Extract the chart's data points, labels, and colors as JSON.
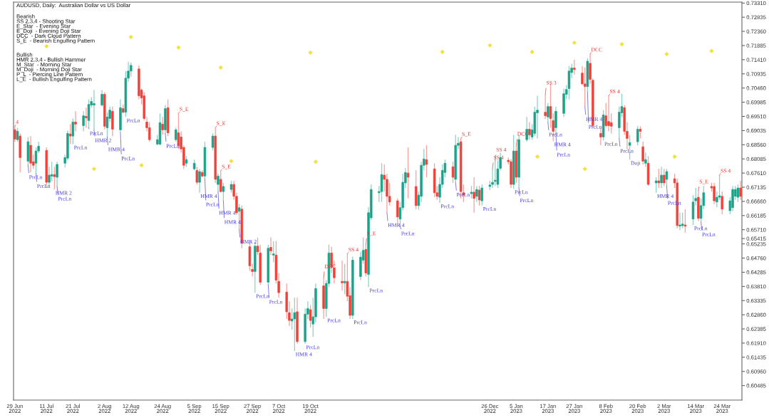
{
  "chart_data": {
    "type": "candlestick",
    "title": "AUDUSD, Daily:  Australian Dollar vs US Dollar",
    "x": [
      "2022-06-29",
      "2022-06-30",
      "2022-07-01",
      "2022-07-04",
      "2022-07-05",
      "2022-07-06",
      "2022-07-07",
      "2022-07-08",
      "2022-07-11",
      "2022-07-12",
      "2022-07-13",
      "2022-07-14",
      "2022-07-15",
      "2022-07-18",
      "2022-07-19",
      "2022-07-20",
      "2022-07-21",
      "2022-07-22",
      "2022-07-25",
      "2022-07-26",
      "2022-07-27",
      "2022-07-28",
      "2022-07-29",
      "2022-08-01",
      "2022-08-02",
      "2022-08-03",
      "2022-08-04",
      "2022-08-05",
      "2022-08-08",
      "2022-08-09",
      "2022-08-10",
      "2022-08-11",
      "2022-08-12",
      "2022-08-15",
      "2022-08-16",
      "2022-08-17",
      "2022-08-18",
      "2022-08-19",
      "2022-08-22",
      "2022-08-23",
      "2022-08-24",
      "2022-08-25",
      "2022-08-26",
      "2022-08-29",
      "2022-08-30",
      "2022-08-31",
      "2022-09-01",
      "2022-09-02",
      "2022-09-05",
      "2022-09-06",
      "2022-09-07",
      "2022-09-08",
      "2022-09-09",
      "2022-09-12",
      "2022-09-13",
      "2022-09-14",
      "2022-09-15",
      "2022-09-16",
      "2022-09-19",
      "2022-09-20",
      "2022-09-21",
      "2022-09-22",
      "2022-09-23",
      "2022-09-26",
      "2022-09-27",
      "2022-09-28",
      "2022-09-29",
      "2022-09-30",
      "2022-10-03",
      "2022-10-04",
      "2022-10-05",
      "2022-10-06",
      "2022-10-07",
      "2022-10-10",
      "2022-10-11",
      "2022-10-12",
      "2022-10-13",
      "2022-10-14",
      "2022-10-17",
      "2022-10-18",
      "2022-10-19",
      "2022-10-20",
      "2022-10-21",
      "2022-10-24",
      "2022-10-25",
      "2022-10-26",
      "2022-10-27",
      "2022-10-28",
      "2022-10-31",
      "2022-11-01",
      "2022-11-02",
      "2022-11-03",
      "2022-11-04",
      "2022-11-07",
      "2022-11-08",
      "2022-11-09",
      "2022-11-10",
      "2022-11-11",
      "2022-11-14",
      "2022-11-15",
      "2022-11-16",
      "2022-11-17",
      "2022-11-18",
      "2022-11-21",
      "2022-11-22",
      "2022-11-23",
      "2022-11-24",
      "2022-11-25",
      "2022-11-28",
      "2022-11-29",
      "2022-11-30",
      "2022-12-01",
      "2022-12-02",
      "2022-12-05",
      "2022-12-06",
      "2022-12-07",
      "2022-12-08",
      "2022-12-09",
      "2022-12-12",
      "2022-12-13",
      "2022-12-14",
      "2022-12-15",
      "2022-12-16",
      "2022-12-19",
      "2022-12-20",
      "2022-12-21",
      "2022-12-22",
      "2022-12-23",
      "2022-12-26",
      "2022-12-27",
      "2022-12-28",
      "2022-12-29",
      "2022-12-30",
      "2023-01-02",
      "2023-01-03",
      "2023-01-04",
      "2023-01-05",
      "2023-01-06",
      "2023-01-09",
      "2023-01-10",
      "2023-01-11",
      "2023-01-12",
      "2023-01-13",
      "2023-01-16",
      "2023-01-17",
      "2023-01-18",
      "2023-01-19",
      "2023-01-20",
      "2023-01-23",
      "2023-01-24",
      "2023-01-25",
      "2023-01-26",
      "2023-01-27",
      "2023-01-30",
      "2023-01-31",
      "2023-02-01",
      "2023-02-02",
      "2023-02-03",
      "2023-02-06",
      "2023-02-07",
      "2023-02-08",
      "2023-02-09",
      "2023-02-10",
      "2023-02-13",
      "2023-02-14",
      "2023-02-15",
      "2023-02-16",
      "2023-02-17",
      "2023-02-20",
      "2023-02-21",
      "2023-02-22",
      "2023-02-23",
      "2023-02-24",
      "2023-02-27",
      "2023-02-28",
      "2023-03-01",
      "2023-03-02",
      "2023-03-03",
      "2023-03-06",
      "2023-03-07",
      "2023-03-08",
      "2023-03-09",
      "2023-03-10",
      "2023-03-13",
      "2023-03-14",
      "2023-03-15",
      "2023-03-16",
      "2023-03-17",
      "2023-03-20",
      "2023-03-21",
      "2023-03-22",
      "2023-03-23",
      "2023-03-24",
      "2023-03-27",
      "2023-03-28",
      "2023-03-29",
      "2023-03-30",
      "2023-03-31"
    ],
    "ohlc": [
      [
        0.6906,
        0.6918,
        0.6866,
        0.6875
      ],
      [
        0.6873,
        0.6913,
        0.6866,
        0.6901
      ],
      [
        0.6885,
        0.6894,
        0.6763,
        0.6813
      ],
      [
        0.6801,
        0.6882,
        0.6787,
        0.6866
      ],
      [
        0.6854,
        0.6885,
        0.6763,
        0.6794
      ],
      [
        0.6799,
        0.6823,
        0.6775,
        0.6787
      ],
      [
        0.6794,
        0.6847,
        0.6759,
        0.6835
      ],
      [
        0.6835,
        0.6866,
        0.6828,
        0.6851
      ],
      [
        0.6837,
        0.6847,
        0.6711,
        0.673
      ],
      [
        0.673,
        0.6782,
        0.6718,
        0.6754
      ],
      [
        0.6751,
        0.6799,
        0.6733,
        0.6756
      ],
      [
        0.6756,
        0.6782,
        0.6706,
        0.6749
      ],
      [
        0.6747,
        0.6799,
        0.6716,
        0.679
      ],
      [
        0.6794,
        0.6823,
        0.678,
        0.6813
      ],
      [
        0.6811,
        0.6904,
        0.6804,
        0.6894
      ],
      [
        0.6892,
        0.6925,
        0.6858,
        0.6885
      ],
      [
        0.6885,
        0.6944,
        0.6858,
        0.6932
      ],
      [
        0.6932,
        0.6968,
        0.6901,
        0.6925
      ],
      [
        0.692,
        0.6968,
        0.6901,
        0.6953
      ],
      [
        0.6951,
        0.698,
        0.6913,
        0.6946
      ],
      [
        0.6937,
        0.7008,
        0.6913,
        0.6991
      ],
      [
        0.6989,
        0.7015,
        0.698,
        0.7001
      ],
      [
        0.6989,
        0.7039,
        0.6906,
        0.6994
      ],
      [
        0.6989,
        0.7039,
        0.6984,
        0.7025
      ],
      [
        0.7025,
        0.7032,
        0.6908,
        0.6918
      ],
      [
        0.6913,
        0.6965,
        0.6882,
        0.6949
      ],
      [
        0.6944,
        0.6984,
        0.6932,
        0.6972
      ],
      [
        0.6968,
        0.6984,
        0.6885,
        0.6908
      ],
      [
        0.6906,
        0.7008,
        0.6896,
        0.698
      ],
      [
        0.6977,
        0.6991,
        0.6961,
        0.6965
      ],
      [
        0.6965,
        0.7103,
        0.6949,
        0.7079
      ],
      [
        0.7079,
        0.7134,
        0.7067,
        0.7103
      ],
      [
        0.7103,
        0.7132,
        0.7084,
        0.7122
      ],
      [
        0.711,
        0.7122,
        0.7008,
        0.702
      ],
      [
        0.7039,
        0.7044,
        0.6991,
        0.7013
      ],
      [
        0.702,
        0.7032,
        0.6937,
        0.6944
      ],
      [
        0.6932,
        0.6949,
        0.6901,
        0.6913
      ],
      [
        0.6913,
        0.6932,
        0.6866,
        0.6873
      ],
      [
        0.6858,
        0.6889,
        0.6854,
        0.6873
      ],
      [
        0.6858,
        0.6961,
        0.6854,
        0.693
      ],
      [
        0.6925,
        0.6949,
        0.6889,
        0.6906
      ],
      [
        0.6906,
        0.6989,
        0.6894,
        0.6977
      ],
      [
        0.698,
        0.7008,
        0.6885,
        0.6896
      ],
      [
        0.6873,
        0.6913,
        0.6866,
        0.6906
      ],
      [
        0.6896,
        0.6961,
        0.6842,
        0.6854
      ],
      [
        0.6882,
        0.6901,
        0.683,
        0.6842
      ],
      [
        0.6847,
        0.6854,
        0.6775,
        0.6787
      ],
      [
        0.6794,
        0.6818,
        0.6782,
        0.6806
      ],
      [
        0.6775,
        0.6806,
        0.677,
        0.6794
      ],
      [
        0.677,
        0.6782,
        0.6723,
        0.673
      ],
      [
        0.673,
        0.6775,
        0.6695,
        0.6766
      ],
      [
        0.6763,
        0.677,
        0.6747,
        0.6751
      ],
      [
        0.6751,
        0.6866,
        0.6742,
        0.6847
      ],
      [
        0.6847,
        0.6894,
        0.6837,
        0.6885
      ],
      [
        0.6885,
        0.6913,
        0.6728,
        0.674
      ],
      [
        0.6723,
        0.6759,
        0.6699,
        0.6751
      ],
      [
        0.674,
        0.6768,
        0.6695,
        0.6699
      ],
      [
        0.6699,
        0.6728,
        0.6668,
        0.6716
      ],
      [
        0.6706,
        0.6735,
        0.6695,
        0.6723
      ],
      [
        0.6723,
        0.6735,
        0.6671,
        0.6683
      ],
      [
        0.6683,
        0.6695,
        0.6621,
        0.6628
      ],
      [
        0.6633,
        0.6657,
        0.6573,
        0.6645
      ],
      [
        0.664,
        0.6652,
        0.6509,
        0.6526
      ],
      [
        0.6514,
        0.6528,
        0.6433,
        0.645
      ],
      [
        0.6438,
        0.6457,
        0.6414,
        0.6431
      ],
      [
        0.6431,
        0.6528,
        0.636,
        0.6516
      ],
      [
        0.6516,
        0.6545,
        0.6486,
        0.6497
      ],
      [
        0.6493,
        0.6521,
        0.6386,
        0.6395
      ],
      [
        0.6395,
        0.6521,
        0.6386,
        0.6509
      ],
      [
        0.6512,
        0.6545,
        0.6486,
        0.65
      ],
      [
        0.6486,
        0.6533,
        0.6462,
        0.649
      ],
      [
        0.6486,
        0.6533,
        0.6391,
        0.6402
      ],
      [
        0.6398,
        0.6426,
        0.6343,
        0.636
      ],
      [
        0.6362,
        0.6391,
        0.6272,
        0.6296
      ],
      [
        0.6293,
        0.6331,
        0.6248,
        0.6267
      ],
      [
        0.6265,
        0.6307,
        0.6236,
        0.6272
      ],
      [
        0.6272,
        0.6343,
        0.6165,
        0.6293
      ],
      [
        0.6296,
        0.6343,
        0.6189,
        0.6196
      ],
      [
        0.6196,
        0.6307,
        0.6189,
        0.6288
      ],
      [
        0.6288,
        0.6331,
        0.6272,
        0.6307
      ],
      [
        0.6303,
        0.6319,
        0.6243,
        0.6267
      ],
      [
        0.6255,
        0.6343,
        0.6212,
        0.6279
      ],
      [
        0.6279,
        0.6391,
        0.626,
        0.6374
      ],
      [
        0.6383,
        0.641,
        0.6272,
        0.6307
      ],
      [
        0.6307,
        0.6402,
        0.6279,
        0.6391
      ],
      [
        0.6391,
        0.6521,
        0.6379,
        0.6493
      ],
      [
        0.6493,
        0.6514,
        0.6426,
        0.6445
      ],
      [
        0.6443,
        0.6467,
        0.6391,
        0.641
      ],
      [
        0.6398,
        0.6467,
        0.6367,
        0.6393
      ],
      [
        0.6393,
        0.6457,
        0.6355,
        0.6398
      ],
      [
        0.6398,
        0.649,
        0.6331,
        0.6348
      ],
      [
        0.635,
        0.6379,
        0.6272,
        0.6284
      ],
      [
        0.6284,
        0.6481,
        0.6272,
        0.6469
      ],
      [
        0.6414,
        0.6497,
        0.6402,
        0.6479
      ],
      [
        0.6469,
        0.6545,
        0.6457,
        0.6502
      ],
      [
        0.6505,
        0.6521,
        0.6414,
        0.6426
      ],
      [
        0.6421,
        0.6647,
        0.6379,
        0.6628
      ],
      [
        0.6611,
        0.6723,
        0.6604,
        0.6706
      ],
      [
        0.6695,
        0.6718,
        0.6664,
        0.6699
      ],
      [
        0.6699,
        0.6794,
        0.6664,
        0.6756
      ],
      [
        0.6754,
        0.679,
        0.6699,
        0.674
      ],
      [
        0.674,
        0.6759,
        0.6628,
        0.6683
      ],
      [
        0.6683,
        0.6728,
        0.6652,
        0.6664
      ],
      [
        0.6668,
        0.6676,
        0.6595,
        0.6614
      ],
      [
        0.6607,
        0.6664,
        0.6585,
        0.6645
      ],
      [
        0.6645,
        0.6759,
        0.6635,
        0.673
      ],
      [
        0.6728,
        0.6778,
        0.6711,
        0.6763
      ],
      [
        0.6761,
        0.6847,
        0.6676,
        0.6747
      ],
      [
        0.6716,
        0.677,
        0.664,
        0.6652
      ],
      [
        0.6652,
        0.6699,
        0.6638,
        0.6687
      ],
      [
        0.6683,
        0.6799,
        0.6664,
        0.6787
      ],
      [
        0.6787,
        0.6842,
        0.677,
        0.6808
      ],
      [
        0.6806,
        0.6854,
        0.6747,
        0.679
      ],
      [
        0.6775,
        0.6794,
        0.668,
        0.6695
      ],
      [
        0.6695,
        0.6718,
        0.6671,
        0.6683
      ],
      [
        0.668,
        0.6747,
        0.6661,
        0.6723
      ],
      [
        0.6723,
        0.679,
        0.6711,
        0.677
      ],
      [
        0.6763,
        0.6806,
        0.6747,
        0.6794
      ],
      [
        0.6782,
        0.6799,
        0.6728,
        0.6747
      ],
      [
        0.674,
        0.6889,
        0.673,
        0.6854
      ],
      [
        0.6854,
        0.6882,
        0.6842,
        0.6861
      ],
      [
        0.6866,
        0.6877,
        0.6676,
        0.6699
      ],
      [
        0.6695,
        0.6723,
        0.6664,
        0.6687
      ],
      [
        0.6692,
        0.6718,
        0.6676,
        0.6697
      ],
      [
        0.6697,
        0.6747,
        0.6628,
        0.6676
      ],
      [
        0.6683,
        0.6718,
        0.6664,
        0.6706
      ],
      [
        0.6704,
        0.6718,
        0.6652,
        0.6671
      ],
      [
        0.6668,
        0.6723,
        0.6652,
        0.6711
      ],
      [
        0.6716,
        0.6735,
        0.6704,
        0.6721
      ],
      [
        0.6723,
        0.6775,
        0.6711,
        0.673
      ],
      [
        0.6733,
        0.6801,
        0.6718,
        0.6737
      ],
      [
        0.6723,
        0.6804,
        0.6711,
        0.6775
      ],
      [
        0.6777,
        0.683,
        0.677,
        0.6813
      ],
      [
        0.6804,
        0.6813,
        0.679,
        0.6799
      ],
      [
        0.6799,
        0.6808,
        0.6711,
        0.6723
      ],
      [
        0.6723,
        0.6889,
        0.6709,
        0.6835
      ],
      [
        0.6835,
        0.6854,
        0.6728,
        0.6747
      ],
      [
        0.6747,
        0.6889,
        0.6711,
        0.6873
      ],
      [
        0.6873,
        0.6949,
        0.6866,
        0.6908
      ],
      [
        0.6908,
        0.6932,
        0.6873,
        0.6889
      ],
      [
        0.6882,
        0.6925,
        0.6873,
        0.6906
      ],
      [
        0.6894,
        0.6984,
        0.6885,
        0.6965
      ],
      [
        0.6963,
        0.702,
        0.6877,
        0.6972
      ],
      [
        0.6965,
        0.7025,
        0.6942,
        0.6953
      ],
      [
        0.6949,
        0.6996,
        0.6932,
        0.6984
      ],
      [
        0.6984,
        0.706,
        0.6913,
        0.6944
      ],
      [
        0.6937,
        0.6961,
        0.6868,
        0.6901
      ],
      [
        0.6913,
        0.6984,
        0.6894,
        0.6968
      ],
      [
        0.6961,
        0.7044,
        0.6949,
        0.7027
      ],
      [
        0.7025,
        0.7056,
        0.7008,
        0.7041
      ],
      [
        0.7044,
        0.712,
        0.7008,
        0.7103
      ],
      [
        0.7098,
        0.7127,
        0.7079,
        0.7113
      ],
      [
        0.7113,
        0.7141,
        0.7091,
        0.7108
      ],
      [
        0.7096,
        0.712,
        0.7056,
        0.706
      ],
      [
        0.706,
        0.7115,
        0.6984,
        0.7051
      ],
      [
        0.7051,
        0.7146,
        0.7032,
        0.7136
      ],
      [
        0.7129,
        0.716,
        0.706,
        0.7075
      ],
      [
        0.7072,
        0.7079,
        0.6913,
        0.692
      ],
      [
        0.6894,
        0.6913,
        0.6854,
        0.6882
      ],
      [
        0.6882,
        0.6972,
        0.687,
        0.6956
      ],
      [
        0.6953,
        0.6996,
        0.6913,
        0.692
      ],
      [
        0.6934,
        0.702,
        0.6901,
        0.692
      ],
      [
        0.693,
        0.6961,
        0.6894,
        0.6918
      ],
      [
        0.6913,
        0.6984,
        0.6877,
        0.6965
      ],
      [
        0.6963,
        0.7027,
        0.6949,
        0.6984
      ],
      [
        0.698,
        0.6989,
        0.6889,
        0.6901
      ],
      [
        0.6901,
        0.6932,
        0.6842,
        0.6877
      ],
      [
        0.6854,
        0.6889,
        0.6806,
        0.6863
      ],
      [
        0.6866,
        0.6918,
        0.6854,
        0.6908
      ],
      [
        0.6908,
        0.6918,
        0.6877,
        0.6901
      ],
      [
        0.6849,
        0.6866,
        0.679,
        0.6801
      ],
      [
        0.6794,
        0.683,
        0.6782,
        0.6806
      ],
      [
        0.6794,
        0.6818,
        0.6718,
        0.6723
      ],
      [
        0.6728,
        0.6747,
        0.6695,
        0.6735
      ],
      [
        0.6735,
        0.6775,
        0.6711,
        0.6728
      ],
      [
        0.6728,
        0.6782,
        0.6711,
        0.6754
      ],
      [
        0.6754,
        0.6775,
        0.6718,
        0.6728
      ],
      [
        0.674,
        0.6775,
        0.6718,
        0.6766
      ],
      [
        0.6742,
        0.6759,
        0.6711,
        0.6728
      ],
      [
        0.6728,
        0.6742,
        0.6576,
        0.6585
      ],
      [
        0.6583,
        0.6628,
        0.6569,
        0.6587
      ],
      [
        0.6585,
        0.6628,
        0.6576,
        0.659
      ],
      [
        0.6587,
        0.664,
        0.6561,
        0.6583
      ],
      [
        0.6607,
        0.6687,
        0.6587,
        0.6664
      ],
      [
        0.6668,
        0.6711,
        0.6652,
        0.6676
      ],
      [
        0.668,
        0.6704,
        0.66,
        0.6609
      ],
      [
        0.6609,
        0.6676,
        0.6597,
        0.6652
      ],
      [
        0.6652,
        0.6718,
        0.664,
        0.6695
      ],
      [
        0.6716,
        0.6728,
        0.6699,
        0.6711
      ],
      [
        0.6716,
        0.6728,
        0.6657,
        0.6668
      ],
      [
        0.6664,
        0.6699,
        0.6647,
        0.668
      ],
      [
        0.668,
        0.6754,
        0.6671,
        0.6685
      ],
      [
        0.6683,
        0.6699,
        0.6623,
        0.664
      ],
      [
        0.6635,
        0.668,
        0.6623,
        0.6668
      ],
      [
        0.6645,
        0.6718,
        0.6633,
        0.6706
      ],
      [
        0.6683,
        0.6718,
        0.6671,
        0.6706
      ],
      [
        0.668,
        0.6723,
        0.6664,
        0.6711
      ],
      [
        0.6711,
        0.6735,
        0.6671,
        0.6683
      ]
    ],
    "colors": [
      "#f0413a",
      "#1aa38a",
      "#f0413a",
      "#1aa38a",
      "#f0413a",
      "#f0413a",
      "#1aa38a",
      "#1aa38a",
      "#f0413a",
      "#1aa38a",
      "#1aa38a",
      "#f0413a",
      "#1aa38a",
      "#1aa38a",
      "#1aa38a",
      "#f0413a",
      "#1aa38a",
      "#f0413a",
      "#1aa38a",
      "#f0413a",
      "#1aa38a",
      "#1aa38a",
      "#1aa38a",
      "#1aa38a",
      "#f0413a",
      "#1aa38a",
      "#1aa38a",
      "#f0413a",
      "#1aa38a",
      "#f0413a",
      "#1aa38a",
      "#1aa38a",
      "#1aa38a",
      "#f0413a",
      "#f0413a",
      "#f0413a",
      "#f0413a",
      "#f0413a",
      "#1aa38a",
      "#1aa38a",
      "#f0413a",
      "#1aa38a",
      "#f0413a",
      "#1aa38a",
      "#f0413a",
      "#f0413a",
      "#f0413a",
      "#1aa38a",
      "#1aa38a",
      "#f0413a",
      "#1aa38a",
      "#f0413a",
      "#1aa38a",
      "#1aa38a",
      "#f0413a",
      "#1aa38a",
      "#f0413a",
      "#1aa38a",
      "#1aa38a",
      "#f0413a",
      "#f0413a",
      "#1aa38a",
      "#f0413a",
      "#f0413a",
      "#f0413a",
      "#1aa38a",
      "#f0413a",
      "#f0413a",
      "#1aa38a",
      "#f0413a",
      "#1aa38a",
      "#f0413a",
      "#f0413a",
      "#f0413a",
      "#f0413a",
      "#1aa38a",
      "#1aa38a",
      "#f0413a",
      "#1aa38a",
      "#1aa38a",
      "#f0413a",
      "#1aa38a",
      "#1aa38a",
      "#f0413a",
      "#1aa38a",
      "#1aa38a",
      "#f0413a",
      "#f0413a",
      "#f0413a",
      "#1aa38a",
      "#f0413a",
      "#f0413a",
      "#1aa38a",
      "#1aa38a",
      "#1aa38a",
      "#f0413a",
      "#1aa38a",
      "#1aa38a",
      "#1aa38a",
      "#1aa38a",
      "#f0413a",
      "#f0413a",
      "#f0413a",
      "#f0413a",
      "#1aa38a",
      "#1aa38a",
      "#1aa38a",
      "#f0413a",
      "#f0413a",
      "#1aa38a",
      "#1aa38a",
      "#1aa38a",
      "#f0413a",
      "#f0413a",
      "#f0413a",
      "#1aa38a",
      "#1aa38a",
      "#1aa38a",
      "#f0413a",
      "#1aa38a",
      "#1aa38a",
      "#f0413a",
      "#f0413a",
      "#1aa38a",
      "#f0413a",
      "#1aa38a",
      "#f0413a",
      "#1aa38a",
      "#1aa38a",
      "#1aa38a",
      "#1aa38a",
      "#1aa38a",
      "#1aa38a",
      "#f0413a",
      "#f0413a",
      "#1aa38a",
      "#f0413a",
      "#1aa38a",
      "#1aa38a",
      "#f0413a",
      "#1aa38a",
      "#1aa38a",
      "#1aa38a",
      "#f0413a",
      "#1aa38a",
      "#f0413a",
      "#f0413a",
      "#1aa38a",
      "#1aa38a",
      "#1aa38a",
      "#1aa38a",
      "#1aa38a",
      "#f0413a",
      "#f0413a",
      "#f0413a",
      "#1aa38a",
      "#f0413a",
      "#f0413a",
      "#f0413a",
      "#1aa38a",
      "#f0413a",
      "#f0413a",
      "#f0413a",
      "#1aa38a",
      "#1aa38a",
      "#f0413a",
      "#f0413a",
      "#1aa38a",
      "#1aa38a",
      "#f0413a",
      "#f0413a",
      "#1aa38a",
      "#f0413a",
      "#1aa38a",
      "#f0413a",
      "#1aa38a",
      "#f0413a",
      "#1aa38a",
      "#f0413a",
      "#f0413a",
      "#1aa38a",
      "#1aa38a",
      "#f0413a",
      "#1aa38a",
      "#1aa38a",
      "#f0413a",
      "#1aa38a",
      "#1aa38a",
      "#f0413a",
      "#f0413a",
      "#1aa38a",
      "#1aa38a",
      "#f0413a",
      "#1aa38a",
      "#1aa38a",
      "#1aa38a",
      "#1aa38a",
      "#f0413a"
    ],
    "series": [
      {
        "type": "scatter",
        "color": "#f2e23a",
        "x": [
          "2022-07-11",
          "2022-07-29",
          "2022-08-12",
          "2022-08-16",
          "2022-08-30",
          "2022-09-15",
          "2022-09-19",
          "2022-10-19",
          "2022-10-21",
          "2022-12-08",
          "2022-12-26",
          "2023-01-11",
          "2023-01-13",
          "2023-01-27",
          "2023-01-31",
          "2023-02-14",
          "2023-03-03",
          "2023-03-06",
          "2023-03-20"
        ],
        "values": [
          0.7186,
          0.6775,
          0.7217,
          0.6787,
          0.7182,
          0.7115,
          0.6801,
          0.7165,
          0.6799,
          0.7167,
          0.7189,
          0.7167,
          0.6816,
          0.7198,
          0.6775,
          0.7193,
          0.716,
          0.6816,
          0.717
        ]
      }
    ],
    "marker": "diamond",
    "xlim": [
      "2022-06-28T12:00",
      "2023-03-31T12:00"
    ],
    "xticks": [
      {
        "value": "2022-06-29",
        "label": "29 Jun 2022"
      },
      {
        "value": "2022-07-11",
        "label": "11 Jul 2022"
      },
      {
        "value": "2022-07-21",
        "label": "21 Jul 2022"
      },
      {
        "value": "2022-08-02",
        "label": "2 Aug 2022"
      },
      {
        "value": "2022-08-12",
        "label": "12 Aug 2022"
      },
      {
        "value": "2022-08-24",
        "label": "24 Aug 2022"
      },
      {
        "value": "2022-09-05",
        "label": "5 Sep 2022"
      },
      {
        "value": "2022-09-15",
        "label": "15 Sep 2022"
      },
      {
        "value": "2022-09-27",
        "label": "27 Sep 2022"
      },
      {
        "value": "2022-10-07",
        "label": "7 Oct 2022"
      },
      {
        "value": "2022-10-19",
        "label": "19 Oct 2022"
      },
      {
        "value": "2022-12-26",
        "label": "26 Dec 2022"
      },
      {
        "value": "2023-01-05",
        "label": "5 Jan 2023"
      },
      {
        "value": "2023-01-17",
        "label": "17 Jan 2023"
      },
      {
        "value": "2023-01-27",
        "label": "27 Jan 2023"
      },
      {
        "value": "2023-02-08",
        "label": "8 Feb 2023"
      },
      {
        "value": "2023-02-20",
        "label": "20 Feb 2023"
      },
      {
        "value": "2023-03-02",
        "label": "2 Mar 2023"
      },
      {
        "value": "2023-03-14",
        "label": "14 Mar 2023"
      },
      {
        "value": "2023-03-24",
        "label": "24 Mar 2023"
      }
    ],
    "ylim": [
      0.6,
      0.7334
    ],
    "yticks": [
      0.60485,
      {
        "value": 0.6096,
        "label": "0.60960"
      },
      0.61435,
      {
        "value": 0.6191,
        "label": "0.61910"
      },
      0.62385,
      {
        "value": 0.6286,
        "label": "0.62860"
      },
      0.63335,
      {
        "value": 0.6381,
        "label": "0.63810"
      },
      0.64285,
      {
        "value": 0.6476,
        "label": "0.64760"
      },
      0.65235,
      0.65415,
      {
        "value": 0.6571,
        "label": "0.65710"
      },
      0.66185,
      {
        "value": 0.6666,
        "label": "0.66660"
      },
      0.67135,
      {
        "value": 0.6761,
        "label": "0.67610"
      },
      0.68085,
      {
        "value": 0.6856,
        "label": "0.68560"
      },
      0.69035,
      {
        "value": 0.6951,
        "label": "0.69510"
      },
      0.69985,
      {
        "value": 0.7046,
        "label": "0.70460"
      },
      0.70935,
      {
        "value": 0.7141,
        "label": "0.71410"
      },
      0.71885,
      {
        "value": 0.7236,
        "label": "0.72360"
      },
      0.72835,
      {
        "value": 0.7331,
        "label": "0.73310"
      }
    ],
    "annotations": [
      "Bearish\nSS 2,3,4 - Shooting Star\nE_Star  - Evening Star\nE_Doji  - Evening Doji Star\nDCC  - Dark Cloud Pattern\nS_E  - Bearish Engulfing Pattern",
      "Bullish\nHMR 2,3,4 - Bullish Hammer\nM_Star  - Morning Star\nM_Doji  - Morning Doji Star\nP_L  - Piercing Line Pattern\nL_E  - Bullish Engulfing Pattern",
      {
        "text": "4",
        "x": "2022-06-29",
        "y": 0.6918
      },
      {
        "text": "PrcLn",
        "x": "2022-07-04",
        "y": 0.6787
      },
      {
        "text": "PrcLn",
        "x": "2022-07-07",
        "y": 0.6759
      },
      {
        "text": "HMR 2",
        "x": "2022-07-14",
        "y": 0.6706
      },
      {
        "text": "PrcLn",
        "x": "2022-07-15",
        "y": 0.6716
      },
      {
        "text": "PrcLn",
        "x": "2022-07-21",
        "y": 0.6858
      },
      {
        "text": "PrcLn",
        "x": "2022-07-27",
        "y": 0.6913
      },
      {
        "text": "HMR 2",
        "x": "2022-07-29",
        "y": 0.6906
      },
      {
        "text": "HMR 4",
        "x": "2022-08-03",
        "y": 0.6882
      },
      {
        "text": "PrcLn",
        "x": "2022-08-08",
        "y": 0.6896
      },
      {
        "text": "PrcLn",
        "x": "2022-08-10",
        "y": 0.6949
      },
      {
        "text": "PrcLn",
        "x": "2022-08-25",
        "y": 0.6894
      },
      {
        "text": "S_E",
        "x": "2022-08-30",
        "y": 0.6961
      },
      {
        "text": "HMR 4",
        "x": "2022-09-07",
        "y": 0.6695
      },
      {
        "text": "PrcLn",
        "x": "2022-09-09",
        "y": 0.6742
      },
      {
        "text": "S_E",
        "x": "2022-09-13",
        "y": 0.6913
      },
      {
        "text": "HMR 4",
        "x": "2022-09-14",
        "y": 0.6699
      },
      {
        "text": "S_E",
        "x": "2022-09-15",
        "y": 0.6768
      },
      {
        "text": "HMR 4",
        "x": "2022-09-16",
        "y": 0.6668
      },
      {
        "text": "HMR 2",
        "x": "2022-09-22",
        "y": 0.6573
      },
      {
        "text": "PrcLn",
        "x": "2022-09-28",
        "y": 0.636
      },
      {
        "text": "PrcLn",
        "x": "2022-10-03",
        "y": 0.6386
      },
      {
        "text": "HMR 4",
        "x": "2022-10-13",
        "y": 0.6165
      },
      {
        "text": "PrcLn",
        "x": "2022-10-17",
        "y": 0.6189
      },
      {
        "text": "DCC",
        "x": "2022-10-24",
        "y": 0.641
      },
      {
        "text": "PrcLn",
        "x": "2022-10-25",
        "y": 0.6279
      },
      {
        "text": "SS 4",
        "x": "2022-11-02",
        "y": 0.649
      },
      {
        "text": "PrcLn",
        "x": "2022-11-04",
        "y": 0.6272
      },
      {
        "text": "S_E",
        "x": "2022-11-09",
        "y": 0.6521
      },
      {
        "text": "PrcLn",
        "x": "2022-11-10",
        "y": 0.6379
      },
      {
        "text": "HMR 4",
        "x": "2022-11-17",
        "y": 0.6628
      },
      {
        "text": "PrcLn",
        "x": "2022-11-22",
        "y": 0.6585
      },
      {
        "text": "PrcLn",
        "x": "2022-12-07",
        "y": 0.6661
      },
      {
        "text": "PrcLn",
        "x": "2022-12-13",
        "y": 0.673
      },
      {
        "text": "S_E",
        "x": "2022-12-15",
        "y": 0.6877
      },
      {
        "text": "PrcLn",
        "x": "2022-12-23",
        "y": 0.6652
      },
      {
        "text": "SS 4",
        "x": "2022-12-27",
        "y": 0.6775
      },
      {
        "text": "SS 4",
        "x": "2022-12-28",
        "y": 0.6801
      },
      {
        "text": "PrcLn",
        "x": "2023-01-04",
        "y": 0.6709
      },
      {
        "text": "DCC",
        "x": "2023-01-05",
        "y": 0.6854
      },
      {
        "text": "PrcLn",
        "x": "2023-01-06",
        "y": 0.6711
      },
      {
        "text": "SS 3",
        "x": "2023-01-16",
        "y": 0.7025
      },
      {
        "text": "PrcLn",
        "x": "2023-01-17",
        "y": 0.6932
      },
      {
        "text": "HMR 4",
        "x": "2023-01-19",
        "y": 0.6868
      },
      {
        "text": "PrcLn",
        "x": "2023-01-20",
        "y": 0.6894
      },
      {
        "text": "HMR 4",
        "x": "2023-01-31",
        "y": 0.6984
      },
      {
        "text": "PrcLn",
        "x": "2023-02-01",
        "y": 0.7032
      },
      {
        "text": "DCC",
        "x": "2023-02-02",
        "y": 0.716
      },
      {
        "text": "PrcLn",
        "x": "2023-02-07",
        "y": 0.687
      },
      {
        "text": "SS 4",
        "x": "2023-02-09",
        "y": 0.702
      },
      {
        "text": "PrcLn",
        "x": "2023-02-13",
        "y": 0.6877
      },
      {
        "text": "Doji",
        "x": "2023-02-17",
        "y": 0.6806
      },
      {
        "text": "HMR 4",
        "x": "2023-02-27",
        "y": 0.6695
      },
      {
        "text": "PrcLn",
        "x": "2023-03-03",
        "y": 0.6718
      },
      {
        "text": "PrcLn",
        "x": "2023-03-13",
        "y": 0.6587
      },
      {
        "text": "S_E",
        "x": "2023-03-15",
        "y": 0.6704
      },
      {
        "text": "PrcLn",
        "x": "2023-03-16",
        "y": 0.6597
      },
      {
        "text": "SS 4",
        "x": "2023-03-23",
        "y": 0.6754
      }
    ]
  }
}
